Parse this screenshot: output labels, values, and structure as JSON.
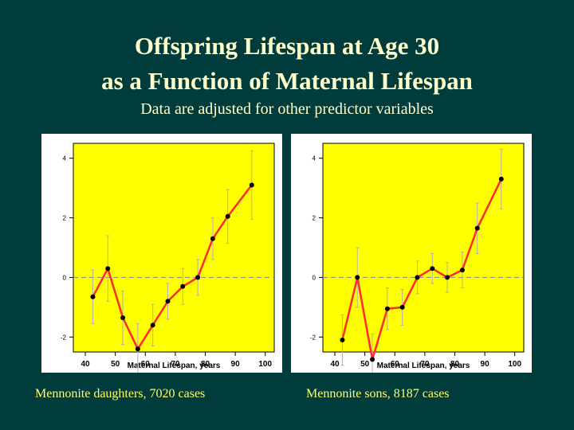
{
  "header": {
    "title_line1": "Offspring  Lifespan at Age 30",
    "title_line2": "as  a  Function  of  Maternal  Lifespan",
    "subtitle": "Data are adjusted for other predictor variables"
  },
  "colors": {
    "background": "#003c3c",
    "plot_fill": "#ffff00",
    "line": "#ff2a2a",
    "point": "#000000",
    "error_bar": "#b0b0b0",
    "reference_line": "#888888",
    "caption": "#ffff66"
  },
  "chart_data": [
    {
      "type": "line",
      "caption": "Mennonite daughters, 7020 cases",
      "xlabel": "Maternal Lifespan, years",
      "ylabel": "",
      "xlim": [
        36,
        103
      ],
      "ylim": [
        -2.5,
        4.5
      ],
      "x_ticks": [
        40,
        50,
        60,
        70,
        80,
        90,
        100
      ],
      "y_ticks": [
        -2,
        0,
        2,
        4
      ],
      "reference_line_y": 0,
      "grid": false,
      "series": [
        {
          "x": [
            42.5,
            47.5,
            52.5,
            57.5,
            62.5,
            67.5,
            72.5,
            77.5,
            82.5,
            87.5,
            95.5
          ],
          "y": [
            -0.65,
            0.3,
            -1.35,
            -2.4,
            -1.6,
            -0.8,
            -0.3,
            0.0,
            1.3,
            2.05,
            3.1
          ],
          "err": [
            0.9,
            1.1,
            0.9,
            0.85,
            0.7,
            0.6,
            0.6,
            0.6,
            0.7,
            0.9,
            1.15
          ]
        }
      ]
    },
    {
      "type": "line",
      "caption": "Mennonite sons, 8187 cases",
      "xlabel": "Maternal Lifespan, years",
      "ylabel": "",
      "xlim": [
        36,
        103
      ],
      "ylim": [
        -2.5,
        4.5
      ],
      "x_ticks": [
        40,
        50,
        60,
        70,
        80,
        90,
        100
      ],
      "y_ticks": [
        -2,
        0,
        2,
        4
      ],
      "reference_line_y": 0,
      "grid": false,
      "series": [
        {
          "x": [
            42.5,
            47.5,
            52.5,
            57.5,
            62.5,
            67.5,
            72.5,
            77.5,
            82.5,
            87.5,
            95.5
          ],
          "y": [
            -2.1,
            0.0,
            -2.75,
            -1.05,
            -1.0,
            0.0,
            0.3,
            0.0,
            0.25,
            1.65,
            3.3
          ],
          "err": [
            0.85,
            1.0,
            0.85,
            0.7,
            0.6,
            0.55,
            0.5,
            0.5,
            0.6,
            0.85,
            1.0
          ]
        }
      ]
    }
  ]
}
